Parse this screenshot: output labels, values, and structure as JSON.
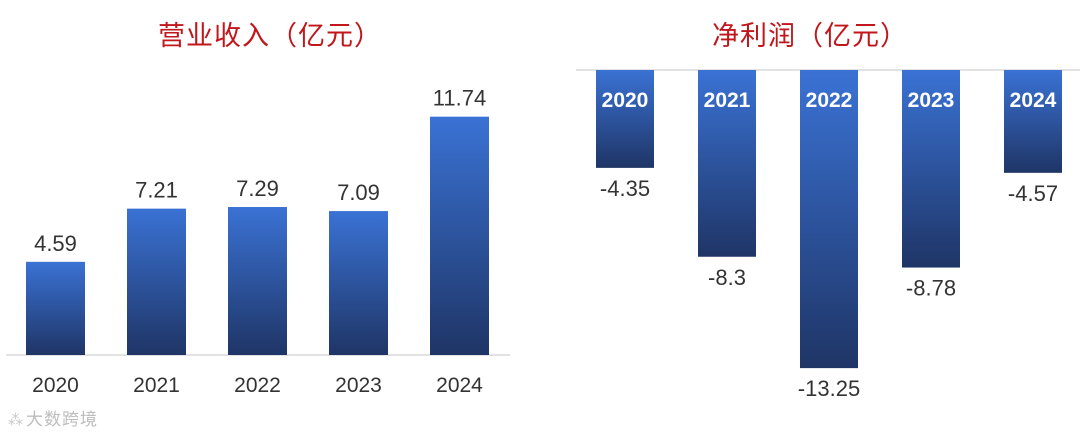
{
  "chart_data": [
    {
      "type": "bar",
      "title": "营业收入（亿元）",
      "categories": [
        "2020",
        "2021",
        "2022",
        "2023",
        "2024"
      ],
      "values": [
        4.59,
        7.21,
        7.29,
        7.09,
        11.74
      ],
      "ylim": [
        0,
        12
      ],
      "grid": false,
      "colors": {
        "bar_top": "#3a72d4",
        "bar_bottom": "#1f3566",
        "axis": "#d9d9d9",
        "label": "#333333"
      }
    },
    {
      "type": "bar",
      "title": "净利润（亿元）",
      "categories": [
        "2020",
        "2021",
        "2022",
        "2023",
        "2024"
      ],
      "values": [
        -4.35,
        -8.3,
        -13.25,
        -8.78,
        -4.57
      ],
      "ylim": [
        -13.25,
        0
      ],
      "grid": false,
      "colors": {
        "bar_top": "#3a72d4",
        "bar_bottom": "#1f3566",
        "axis": "#d9d9d9",
        "label": "#333333",
        "year_label": "#ffffff"
      }
    }
  ],
  "watermark": {
    "text": "大数跨境",
    "icon": "paw-icon"
  }
}
